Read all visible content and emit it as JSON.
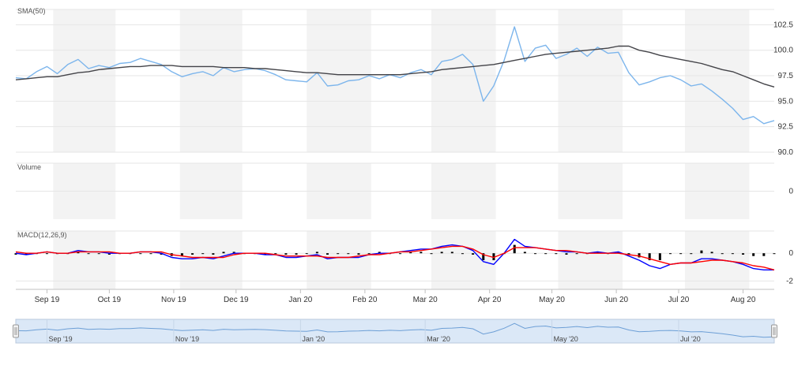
{
  "chart_data": {
    "type": "line",
    "x_range": [
      "2020-08-14",
      "2021-08-13"
    ],
    "x_tick_labels": [
      "Sep 19",
      "Oct 19",
      "Nov 19",
      "Dec 19",
      "Jan 20",
      "Feb 20",
      "Mar 20",
      "Apr 20",
      "May 20",
      "Jun 20",
      "Jul 20",
      "Aug 20"
    ],
    "navigator_labels": [
      "Sep '19",
      "Nov '19",
      "Jan '20",
      "Mar '20",
      "May '20",
      "Jul '20"
    ],
    "grid": true,
    "legend": "none",
    "panels": [
      {
        "id": "price",
        "label": "SMA(50)",
        "ylim": [
          90,
          104
        ],
        "y_ticks": [
          "102.5",
          "100.0",
          "97.5",
          "95.0",
          "92.5",
          "90.0"
        ],
        "series": [
          {
            "color": "#7cb5ec",
            "x": [
              0,
              5,
              10,
              15,
              20,
              25,
              30,
              35,
              40,
              45,
              50,
              55,
              60,
              65,
              70,
              75,
              80,
              85,
              90,
              95,
              100,
              105,
              110,
              115,
              120,
              125,
              130,
              135,
              140,
              145,
              150,
              155,
              160,
              165,
              170,
              175,
              180,
              185,
              190,
              195,
              200,
              205,
              210,
              215,
              220,
              225,
              230,
              235,
              240,
              245,
              250,
              255,
              260,
              265,
              270,
              275,
              280,
              285,
              290,
              295,
              300,
              305,
              310,
              315,
              320,
              325,
              330,
              335,
              340,
              345,
              350,
              355,
              360,
              365
            ],
            "y": [
              97.3,
              97.2,
              97.9,
              98.4,
              97.7,
              98.6,
              99.1,
              98.2,
              98.5,
              98.3,
              98.7,
              98.8,
              99.2,
              98.9,
              98.6,
              97.9,
              97.4,
              97.7,
              97.9,
              97.5,
              98.3,
              97.9,
              98.1,
              98.2,
              98.0,
              97.6,
              97.1,
              97.0,
              96.9,
              97.8,
              96.5,
              96.6,
              97.0,
              97.1,
              97.5,
              97.2,
              97.6,
              97.3,
              97.8,
              98.1,
              97.6,
              98.9,
              99.1,
              99.6,
              98.6,
              95.0,
              96.5,
              99.0,
              102.3,
              98.9,
              100.2,
              100.5,
              99.2,
              99.6,
              100.2,
              99.4,
              100.3,
              99.7,
              99.8,
              97.8,
              96.6,
              96.9,
              97.3,
              97.5,
              97.1,
              96.5,
              96.7,
              96.0,
              95.2,
              94.3,
              93.2,
              93.5,
              92.8,
              93.1
            ]
          },
          {
            "color": "#434348",
            "x": [
              0,
              5,
              10,
              15,
              20,
              25,
              30,
              35,
              40,
              45,
              50,
              55,
              60,
              65,
              70,
              75,
              80,
              85,
              90,
              95,
              100,
              105,
              110,
              115,
              120,
              125,
              130,
              135,
              140,
              145,
              150,
              155,
              160,
              165,
              170,
              175,
              180,
              185,
              190,
              195,
              200,
              205,
              210,
              215,
              220,
              225,
              230,
              235,
              240,
              245,
              250,
              255,
              260,
              265,
              270,
              275,
              280,
              285,
              290,
              295,
              300,
              305,
              310,
              315,
              320,
              325,
              330,
              335,
              340,
              345,
              350,
              355,
              360,
              365
            ],
            "y": [
              97.1,
              97.2,
              97.3,
              97.4,
              97.4,
              97.6,
              97.8,
              97.9,
              98.1,
              98.2,
              98.3,
              98.4,
              98.4,
              98.5,
              98.5,
              98.5,
              98.4,
              98.4,
              98.4,
              98.4,
              98.3,
              98.3,
              98.3,
              98.2,
              98.2,
              98.1,
              98.0,
              97.9,
              97.8,
              97.8,
              97.7,
              97.6,
              97.6,
              97.6,
              97.6,
              97.6,
              97.6,
              97.6,
              97.7,
              97.8,
              97.9,
              98.1,
              98.2,
              98.3,
              98.4,
              98.5,
              98.6,
              98.8,
              99.0,
              99.2,
              99.4,
              99.6,
              99.7,
              99.8,
              99.9,
              100.0,
              100.1,
              100.2,
              100.4,
              100.4,
              100.0,
              99.8,
              99.5,
              99.3,
              99.1,
              98.9,
              98.7,
              98.4,
              98.1,
              97.9,
              97.5,
              97.1,
              96.7,
              96.4
            ]
          }
        ]
      },
      {
        "id": "volume",
        "label": "Volume",
        "ylim": [
          -1,
          1
        ],
        "y_ticks": [
          "0"
        ],
        "series": []
      },
      {
        "id": "macd",
        "label": "MACD(12,26,9)",
        "ylim": [
          -2.6,
          1.6
        ],
        "y_ticks": [
          "0",
          "-2"
        ],
        "series": [
          {
            "color": "#0000ff",
            "x": [
              0,
              5,
              10,
              15,
              20,
              25,
              30,
              35,
              40,
              45,
              50,
              55,
              60,
              65,
              70,
              75,
              80,
              85,
              90,
              95,
              100,
              105,
              110,
              115,
              120,
              125,
              130,
              135,
              140,
              145,
              150,
              155,
              160,
              165,
              170,
              175,
              180,
              185,
              190,
              195,
              200,
              205,
              210,
              215,
              220,
              225,
              230,
              235,
              240,
              245,
              250,
              255,
              260,
              265,
              270,
              275,
              280,
              285,
              290,
              295,
              300,
              305,
              310,
              315,
              320,
              325,
              330,
              335,
              340,
              345,
              350,
              355,
              360,
              365
            ],
            "y": [
              0.0,
              -0.1,
              0.0,
              0.1,
              0.0,
              0.0,
              0.2,
              0.1,
              0.1,
              0.0,
              0.0,
              0.0,
              0.1,
              0.1,
              0.0,
              -0.3,
              -0.4,
              -0.4,
              -0.3,
              -0.4,
              -0.2,
              0.0,
              0.0,
              0.0,
              -0.1,
              -0.1,
              -0.3,
              -0.3,
              -0.2,
              -0.1,
              -0.4,
              -0.3,
              -0.3,
              -0.3,
              -0.1,
              0.0,
              0.0,
              0.1,
              0.2,
              0.3,
              0.3,
              0.5,
              0.6,
              0.5,
              0.2,
              -0.6,
              -0.8,
              0.0,
              1.0,
              0.5,
              0.4,
              0.3,
              0.2,
              0.1,
              0.1,
              0.0,
              0.1,
              0.0,
              0.1,
              -0.2,
              -0.5,
              -0.9,
              -1.1,
              -0.8,
              -0.7,
              -0.7,
              -0.4,
              -0.4,
              -0.5,
              -0.6,
              -0.8,
              -1.1,
              -1.2,
              -1.2
            ]
          },
          {
            "color": "#ff0000",
            "x": [
              0,
              5,
              10,
              15,
              20,
              25,
              30,
              35,
              40,
              45,
              50,
              55,
              60,
              65,
              70,
              75,
              80,
              85,
              90,
              95,
              100,
              105,
              110,
              115,
              120,
              125,
              130,
              135,
              140,
              145,
              150,
              155,
              160,
              165,
              170,
              175,
              180,
              185,
              190,
              195,
              200,
              205,
              210,
              215,
              220,
              225,
              230,
              235,
              240,
              245,
              250,
              255,
              260,
              265,
              270,
              275,
              280,
              285,
              290,
              295,
              300,
              305,
              310,
              315,
              320,
              325,
              330,
              335,
              340,
              345,
              350,
              355,
              360,
              365
            ],
            "y": [
              0.1,
              0.0,
              0.0,
              0.1,
              0.0,
              0.0,
              0.1,
              0.1,
              0.1,
              0.1,
              0.0,
              0.0,
              0.1,
              0.1,
              0.1,
              -0.1,
              -0.2,
              -0.3,
              -0.3,
              -0.3,
              -0.3,
              -0.1,
              0.0,
              0.0,
              0.0,
              -0.1,
              -0.2,
              -0.2,
              -0.2,
              -0.2,
              -0.3,
              -0.3,
              -0.3,
              -0.2,
              -0.1,
              -0.1,
              0.0,
              0.1,
              0.1,
              0.2,
              0.3,
              0.4,
              0.5,
              0.5,
              0.3,
              -0.1,
              -0.3,
              0.0,
              0.4,
              0.4,
              0.4,
              0.3,
              0.2,
              0.2,
              0.1,
              0.0,
              0.0,
              0.0,
              0.0,
              -0.1,
              -0.2,
              -0.4,
              -0.6,
              -0.8,
              -0.7,
              -0.7,
              -0.6,
              -0.5,
              -0.5,
              -0.6,
              -0.7,
              -0.9,
              -1.0,
              -1.2
            ]
          }
        ],
        "histogram": {
          "color": "#000000",
          "x": [
            0,
            5,
            10,
            15,
            20,
            25,
            30,
            35,
            40,
            45,
            50,
            55,
            60,
            65,
            70,
            75,
            80,
            85,
            90,
            95,
            100,
            105,
            110,
            115,
            120,
            125,
            130,
            135,
            140,
            145,
            150,
            155,
            160,
            165,
            170,
            175,
            180,
            185,
            190,
            195,
            200,
            205,
            210,
            215,
            220,
            225,
            230,
            235,
            240,
            245,
            250,
            255,
            260,
            265,
            270,
            275,
            280,
            285,
            290,
            295,
            300,
            305,
            310,
            315,
            320,
            325,
            330,
            335,
            340,
            345,
            350,
            355,
            360,
            365
          ],
          "y": [
            -0.1,
            -0.1,
            0.0,
            0.0,
            0.0,
            0.0,
            0.1,
            0.0,
            0.0,
            -0.1,
            0.0,
            0.0,
            0.0,
            0.0,
            -0.1,
            -0.2,
            -0.2,
            -0.1,
            0.0,
            -0.1,
            0.1,
            0.1,
            0.0,
            0.0,
            -0.1,
            0.0,
            -0.1,
            -0.1,
            0.0,
            0.1,
            -0.1,
            0.0,
            0.0,
            -0.1,
            0.0,
            0.1,
            0.0,
            0.0,
            0.1,
            0.1,
            0.0,
            0.1,
            0.1,
            0.0,
            -0.1,
            -0.5,
            -0.5,
            0.0,
            0.6,
            0.1,
            0.0,
            0.0,
            0.0,
            -0.1,
            0.0,
            0.0,
            0.1,
            0.0,
            0.1,
            -0.1,
            -0.3,
            -0.5,
            -0.5,
            0.0,
            0.0,
            0.0,
            0.2,
            0.1,
            0.0,
            0.0,
            -0.1,
            -0.2,
            -0.2,
            0.0
          ]
        }
      }
    ]
  },
  "colors": {
    "band": "#f3f3f3",
    "grid": "#e6e6e6",
    "navigator_fill": "#dbe8f7",
    "navigator_line": "#6d9fd6"
  }
}
